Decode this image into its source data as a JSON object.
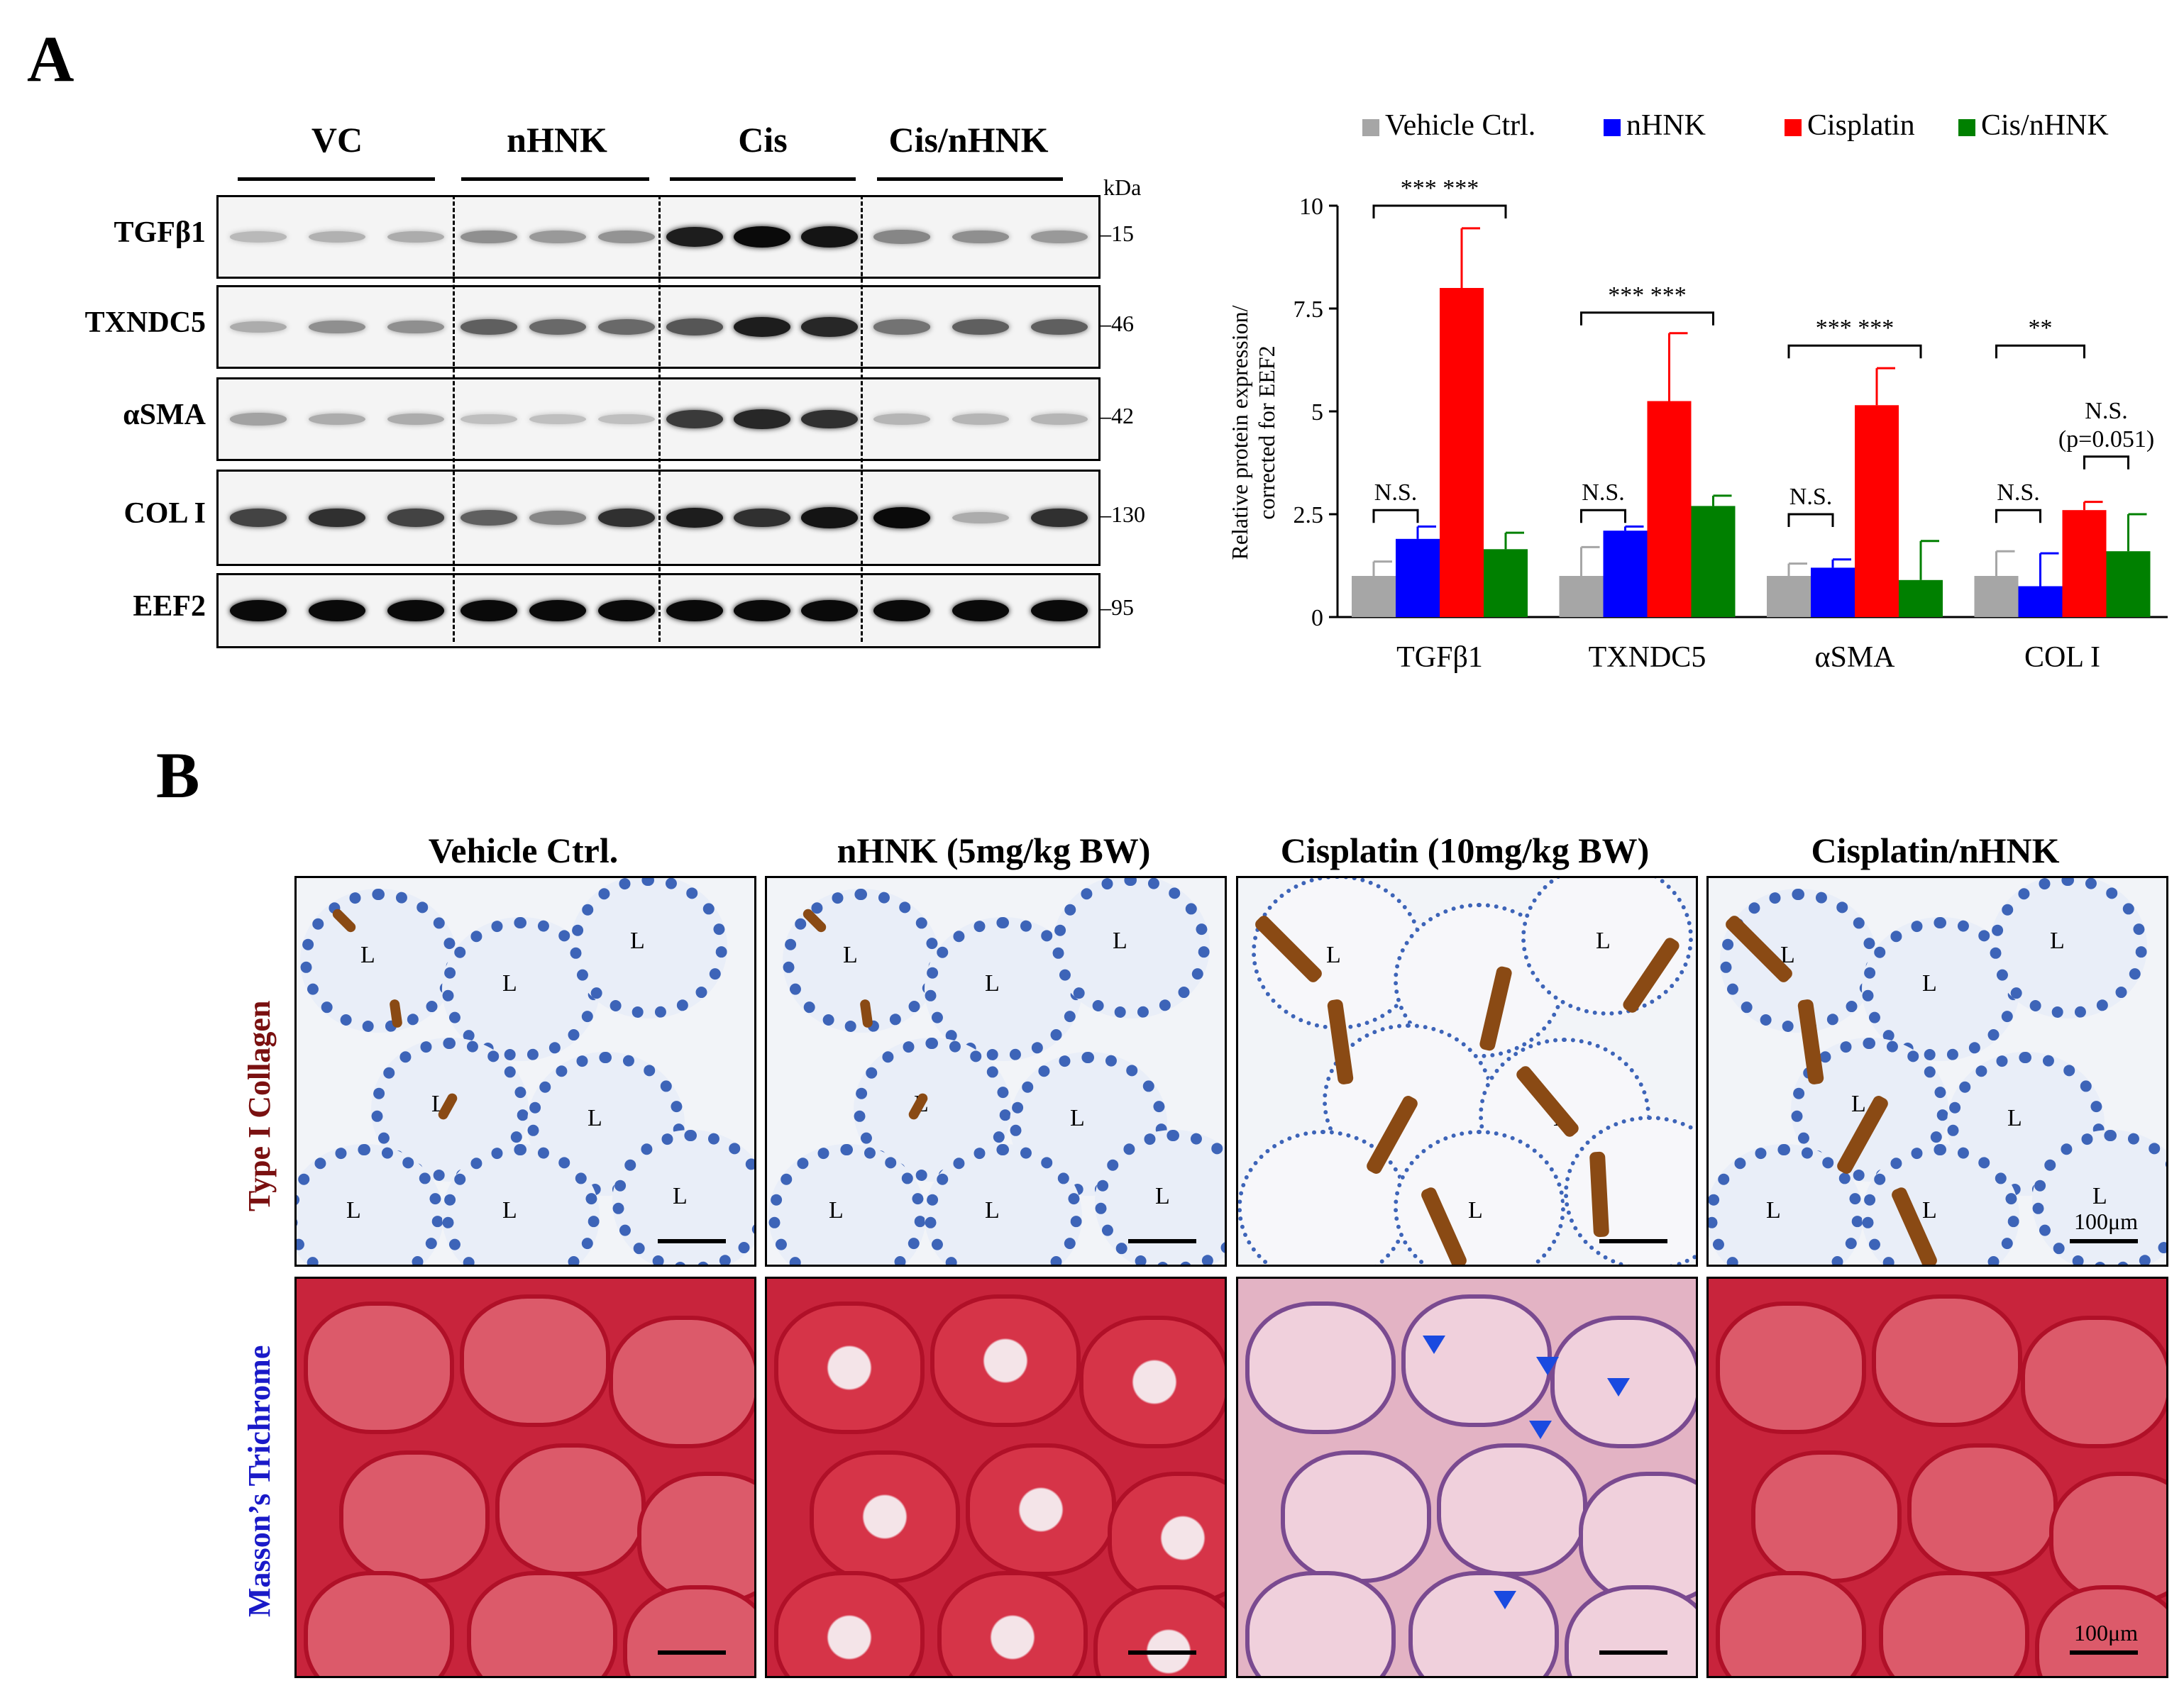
{
  "panel_a_label": "A",
  "panel_b_label": "B",
  "western_blot": {
    "groups": [
      "VC",
      "nHNK",
      "Cis",
      "Cis/nHNK"
    ],
    "unit_label": "kDa",
    "proteins": [
      {
        "name": "TGFβ1",
        "mw": "15",
        "intensities": [
          0.08,
          0.12,
          0.15,
          0.3,
          0.25,
          0.28,
          0.9,
          1.0,
          0.95,
          0.35,
          0.3,
          0.25
        ]
      },
      {
        "name": "TXNDC5",
        "mw": "46",
        "intensities": [
          0.15,
          0.3,
          0.3,
          0.55,
          0.5,
          0.5,
          0.6,
          0.9,
          0.85,
          0.45,
          0.55,
          0.55
        ]
      },
      {
        "name": "αSMA",
        "mw": "42",
        "intensities": [
          0.2,
          0.15,
          0.15,
          0.05,
          0.05,
          0.05,
          0.75,
          0.85,
          0.8,
          0.1,
          0.1,
          0.1
        ]
      },
      {
        "name": "COL I",
        "mw": "130",
        "intensities": [
          0.7,
          0.8,
          0.7,
          0.55,
          0.35,
          0.8,
          0.9,
          0.8,
          0.95,
          1.0,
          0.15,
          0.8
        ]
      },
      {
        "name": "EEF2",
        "mw": "95",
        "intensities": [
          1,
          1,
          1,
          1,
          1,
          1,
          1,
          1,
          1,
          1,
          1,
          1
        ]
      }
    ]
  },
  "chart_data": {
    "type": "bar",
    "categories": [
      "TGFβ1",
      "TXNDC5",
      "αSMA",
      "COL I"
    ],
    "series": [
      {
        "name": "Vehicle Ctrl.",
        "color": "#a6a6a6",
        "values": [
          1.0,
          1.0,
          1.0,
          1.0
        ],
        "errors": [
          0.35,
          0.7,
          0.3,
          0.6
        ]
      },
      {
        "name": "nHNK",
        "color": "#0000ff",
        "values": [
          1.9,
          2.1,
          1.2,
          0.75
        ],
        "errors": [
          0.3,
          0.1,
          0.2,
          0.8
        ]
      },
      {
        "name": "Cisplatin",
        "color": "#ff0000",
        "values": [
          8.0,
          5.25,
          5.15,
          2.6
        ],
        "errors": [
          1.45,
          1.65,
          0.9,
          0.2
        ]
      },
      {
        "name": "Cis/nHNK",
        "color": "#008000",
        "values": [
          1.65,
          2.7,
          0.9,
          1.6
        ],
        "errors": [
          0.4,
          0.25,
          0.95,
          0.9
        ]
      }
    ],
    "ylabel_line1": "Relative protein expression/",
    "ylabel_line2": "corrected for EEF2",
    "ylim": [
      0,
      10
    ],
    "yticks": [
      "0",
      "2.5",
      "5",
      "7.5",
      "10"
    ],
    "legend_position": "top",
    "annotations": [
      {
        "group": 0,
        "from": 0,
        "to": 1,
        "text": "N.S.",
        "level": 2.6
      },
      {
        "group": 0,
        "from": 0,
        "to": 3,
        "text": "***   ***",
        "level": 10.0
      },
      {
        "group": 1,
        "from": 0,
        "to": 1,
        "text": "N.S.",
        "level": 2.6
      },
      {
        "group": 1,
        "from": 0,
        "to": 3,
        "text": "***   ***",
        "level": 7.4
      },
      {
        "group": 2,
        "from": 0,
        "to": 1,
        "text": "N.S.",
        "level": 2.5
      },
      {
        "group": 2,
        "from": 0,
        "to": 3,
        "text": "***   ***",
        "level": 6.6
      },
      {
        "group": 3,
        "from": 0,
        "to": 1,
        "text": "N.S.",
        "level": 2.6
      },
      {
        "group": 3,
        "from": 0,
        "to": 2,
        "text": "**",
        "level": 6.6
      },
      {
        "group": 3,
        "from": 2,
        "to": 3,
        "text": "N.S.\n(p=0.051)",
        "level": 3.9
      }
    ]
  },
  "histology": {
    "columns": [
      "Vehicle Ctrl.",
      "nHNK (5mg/kg BW)",
      "Cisplatin (10mg/kg BW)",
      "Cisplatin/nHNK"
    ],
    "rows": [
      {
        "label": "Type I Collagen",
        "color": "#7a1010"
      },
      {
        "label": "Masson’s Trichrome",
        "color": "#1a1ac8"
      }
    ],
    "lumen_marker": "L",
    "scale_label": "100μm"
  }
}
